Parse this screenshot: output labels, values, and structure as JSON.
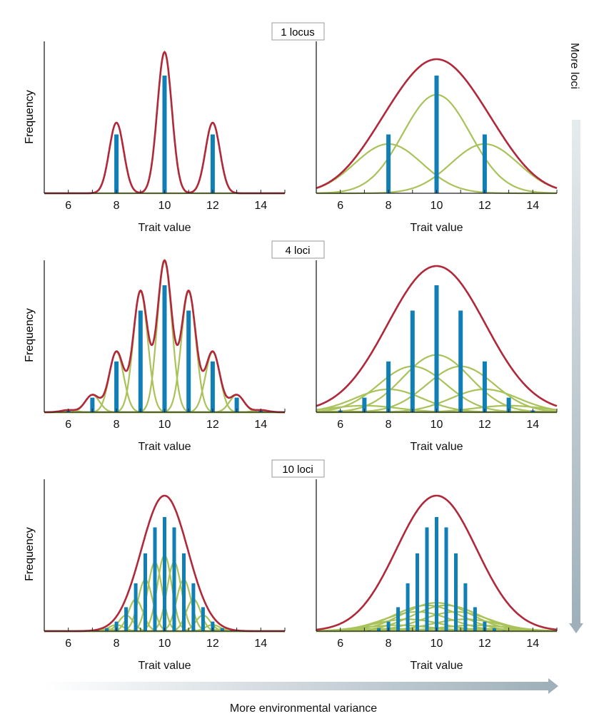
{
  "chart_data": {
    "type": "line",
    "row_labels": [
      "1 locus",
      "4 loci",
      "10 loci"
    ],
    "y_axis_label": "Frequency",
    "x_axis_label": "Trait value",
    "x_ticks": [
      6,
      8,
      10,
      12,
      14
    ],
    "x_range": [
      5,
      15
    ],
    "right_arrow_label": "More loci",
    "bottom_arrow_label": "More environmental variance",
    "colors": {
      "bars": "#0f7fb6",
      "component_curves": "#a9c25a",
      "total_curve": "#b0283a",
      "axis": "#222222",
      "arrow": "#b9c5cc",
      "label_box_border": "#9a9a9a"
    },
    "panels": [
      {
        "row": 0,
        "col": 0,
        "loci": 1,
        "env_variance": "low",
        "component_sd": 0.3,
        "bars_x": [
          8,
          10,
          12
        ],
        "bars_y": [
          0.25,
          0.5,
          0.25
        ]
      },
      {
        "row": 0,
        "col": 1,
        "loci": 1,
        "env_variance": "high",
        "component_sd": 1.4,
        "bars_x": [
          8,
          10,
          12
        ],
        "bars_y": [
          0.25,
          0.5,
          0.25
        ]
      },
      {
        "row": 1,
        "col": 0,
        "loci": 4,
        "env_variance": "low",
        "component_sd": 0.3,
        "bars_x": [
          6,
          7,
          8,
          9,
          10,
          11,
          12,
          13,
          14
        ],
        "bars_y": [
          0.0039,
          0.0313,
          0.1094,
          0.2188,
          0.2734,
          0.2188,
          0.1094,
          0.0313,
          0.0039
        ]
      },
      {
        "row": 1,
        "col": 1,
        "loci": 4,
        "env_variance": "high",
        "component_sd": 1.4,
        "bars_x": [
          6,
          7,
          8,
          9,
          10,
          11,
          12,
          13,
          14
        ],
        "bars_y": [
          0.0039,
          0.0313,
          0.1094,
          0.2188,
          0.2734,
          0.2188,
          0.1094,
          0.0313,
          0.0039
        ]
      },
      {
        "row": 2,
        "col": 0,
        "loci": 10,
        "env_variance": "low",
        "component_sd": 0.3,
        "bars_x": [
          6.0,
          6.4,
          6.8,
          7.2,
          7.6,
          8.0,
          8.4,
          8.8,
          9.2,
          9.6,
          10.0,
          10.4,
          10.8,
          11.2,
          11.6,
          12.0,
          12.4,
          12.8,
          13.2,
          13.6,
          14.0
        ],
        "bars_y": [
          0.0,
          0.0,
          0.0002,
          0.0011,
          0.0046,
          0.0148,
          0.037,
          0.0739,
          0.1201,
          0.1602,
          0.1762,
          0.1602,
          0.1201,
          0.0739,
          0.037,
          0.0148,
          0.0046,
          0.0011,
          0.0002,
          0.0,
          0.0
        ]
      },
      {
        "row": 2,
        "col": 1,
        "loci": 10,
        "env_variance": "high",
        "component_sd": 1.4,
        "bars_x": [
          6.0,
          6.4,
          6.8,
          7.2,
          7.6,
          8.0,
          8.4,
          8.8,
          9.2,
          9.6,
          10.0,
          10.4,
          10.8,
          11.2,
          11.6,
          12.0,
          12.4,
          12.8,
          13.2,
          13.6,
          14.0
        ],
        "bars_y": [
          0.0,
          0.0,
          0.0002,
          0.0011,
          0.0046,
          0.0148,
          0.037,
          0.0739,
          0.1201,
          0.1602,
          0.1762,
          0.1602,
          0.1201,
          0.0739,
          0.037,
          0.0148,
          0.0046,
          0.0011,
          0.0002,
          0.0,
          0.0
        ]
      }
    ]
  }
}
